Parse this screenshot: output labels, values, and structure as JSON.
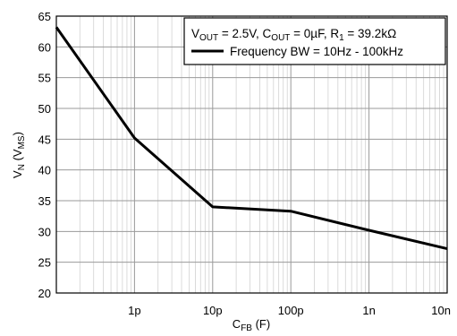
{
  "chart_data": {
    "type": "line",
    "x_scale": "log",
    "xlim": [
      1e-13,
      1e-08
    ],
    "ylim": [
      20,
      65
    ],
    "x_tick_values": [
      1e-12,
      1e-11,
      1e-10,
      1e-09,
      1e-08
    ],
    "x_tick_labels": [
      "1p",
      "10p",
      "100p",
      "1n",
      "10n"
    ],
    "y_ticks": [
      20,
      25,
      30,
      35,
      40,
      45,
      50,
      55,
      60,
      65
    ],
    "xlabel": {
      "main": "C",
      "sub": "FB",
      "rest": " (F)"
    },
    "ylabel": {
      "main": "V",
      "sub": "N",
      "rest": " (V",
      "sub2": "MS",
      "end": ")"
    },
    "grid": true,
    "legend_position": "top-right",
    "legend_line1": [
      {
        "t": "V"
      },
      {
        "t": "OUT",
        "sub": true
      },
      {
        "t": " = 2.5V, C"
      },
      {
        "t": "OUT",
        "sub": true
      },
      {
        "t": " = 0µF, R"
      },
      {
        "t": "1",
        "sub": true
      },
      {
        "t": " = 39.2kΩ"
      }
    ],
    "series": [
      {
        "name": "Frequency BW = 10Hz - 100kHz",
        "color": "#000000",
        "x": [
          1e-13,
          1e-12,
          1e-11,
          1e-10,
          1e-09,
          1e-08
        ],
        "y": [
          63.2,
          45.2,
          34.0,
          33.3,
          30.2,
          27.2
        ]
      }
    ]
  }
}
